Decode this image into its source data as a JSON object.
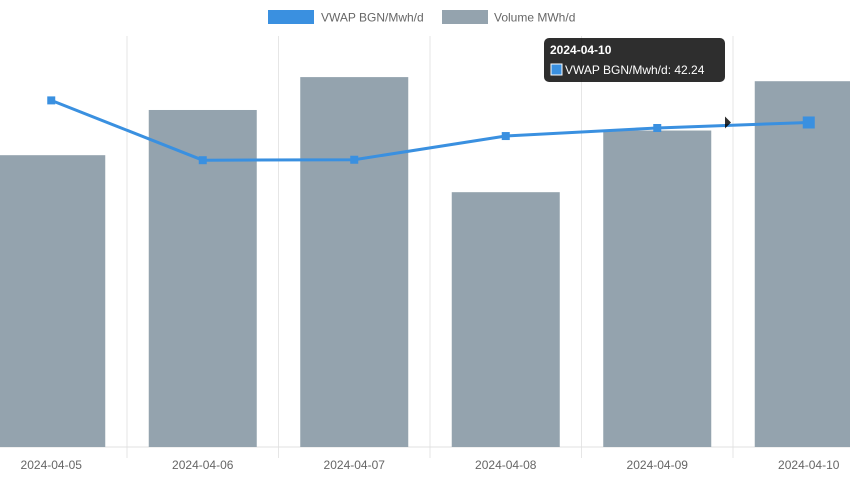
{
  "chart_data": {
    "type": "bar",
    "categories": [
      "2024-04-05",
      "2024-04-06",
      "2024-04-07",
      "2024-04-08",
      "2024-04-09",
      "2024-04-10"
    ],
    "series": [
      {
        "name": "Volume MWh/d",
        "type": "bar",
        "color": "#94a3ae",
        "values": [
          71,
          82,
          90,
          62,
          77,
          89
        ]
      },
      {
        "name": "VWAP BGN/Mwh/d",
        "type": "line",
        "color": "#3a90e0",
        "values": [
          43.2,
          40.6,
          40.62,
          41.65,
          42.0,
          42.24
        ]
      }
    ],
    "legend": {
      "position": "top-center",
      "items": [
        {
          "label": "VWAP BGN/Mwh/d",
          "color": "#3a90e0"
        },
        {
          "label": "Volume MWh/d",
          "color": "#94a3ae"
        }
      ]
    },
    "tooltip": {
      "title": "2024-04-10",
      "label": "VWAP BGN/Mwh/d: 42.24",
      "swatch_color": "#3a90e0"
    },
    "grid": true
  }
}
